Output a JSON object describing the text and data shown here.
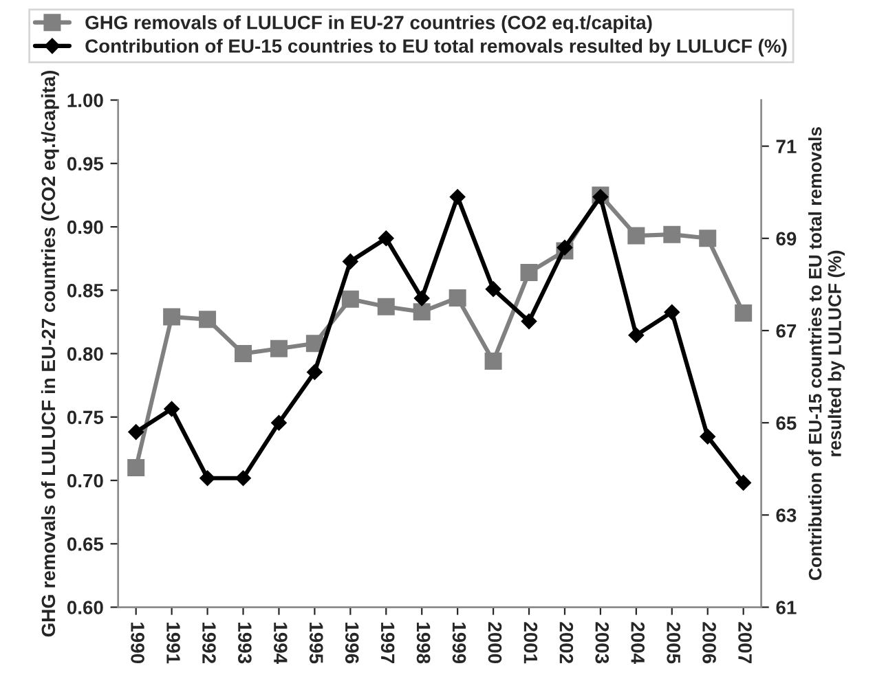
{
  "chart_data": {
    "type": "line",
    "categories": [
      "1990",
      "1991",
      "1992",
      "1993",
      "1994",
      "1995",
      "1996",
      "1997",
      "1998",
      "1999",
      "2000",
      "2001",
      "2002",
      "2003",
      "2004",
      "2005",
      "2006",
      "2007"
    ],
    "ylabel": "GHG removals of LULUCF in EU-27 countries (CO2 eq.t/capita)",
    "y2label": "Contribution of EU-15 countries to EU total removals\nresulted by LULUCF (%)",
    "ylim": [
      0.6,
      1.0
    ],
    "yticks": [
      {
        "value": 0.6,
        "label": "0.60"
      },
      {
        "value": 0.65,
        "label": "0.65"
      },
      {
        "value": 0.7,
        "label": "0.70"
      },
      {
        "value": 0.75,
        "label": "0.75"
      },
      {
        "value": 0.8,
        "label": "0.80"
      },
      {
        "value": 0.85,
        "label": "0.85"
      },
      {
        "value": 0.9,
        "label": "0.90"
      },
      {
        "value": 0.95,
        "label": "0.95"
      },
      {
        "value": 1.0,
        "label": "1.00"
      }
    ],
    "y2lim": [
      61,
      72
    ],
    "y2ticks": [
      61,
      63,
      65,
      67,
      69,
      71
    ],
    "legend": "top",
    "grid": false,
    "line_style": "solid",
    "series": [
      {
        "name": "GHG removals of LULUCF in EU-27 countries (CO2 eq.t/capita)",
        "color": "#808080",
        "marker": "square",
        "values": [
          0.71,
          0.829,
          0.827,
          0.8,
          0.804,
          0.808,
          0.843,
          0.837,
          0.833,
          0.844,
          0.794,
          0.864,
          0.881,
          0.925,
          0.893,
          0.894,
          0.891,
          0.832
        ]
      },
      {
        "name": "Contribution of EU-15 countries to EU total removals resulted by LULUCF (%)",
        "color": "#000000",
        "marker": "diamond",
        "axis": "y2",
        "values": [
          64.8,
          65.3,
          63.8,
          63.8,
          65.0,
          66.1,
          68.5,
          69.0,
          67.7,
          69.9,
          67.9,
          67.2,
          68.8,
          69.9,
          66.9,
          67.4,
          64.7,
          63.7
        ]
      }
    ]
  }
}
